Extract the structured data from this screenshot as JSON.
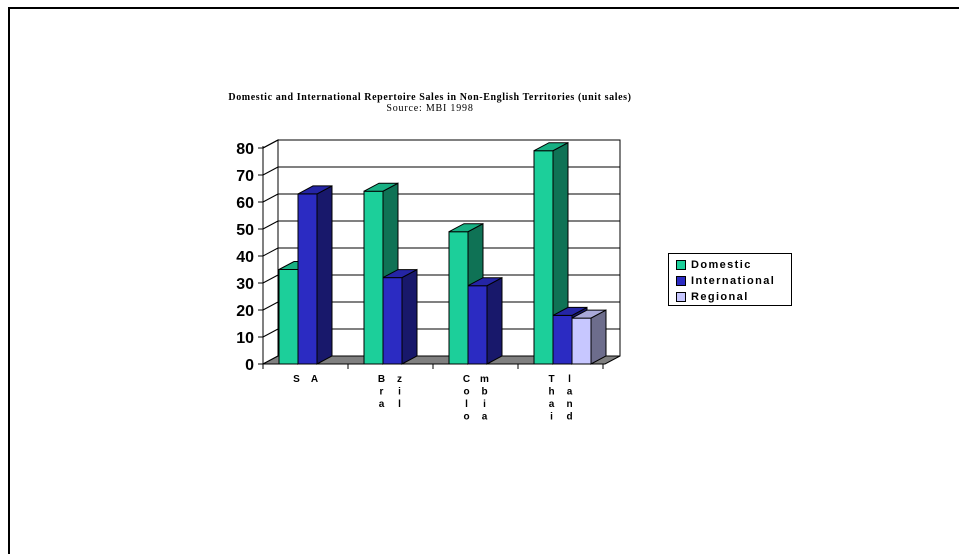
{
  "chart_data": {
    "type": "bar",
    "title": "Domestic and  International Repertoire Sales in Non-English Territories (unit sales)",
    "subtitle": "Source: MBI 1998",
    "categories": [
      "SA",
      "Brazil",
      "Colombia",
      "Thailand"
    ],
    "category_tick_text": [
      [
        "S",
        "A"
      ],
      [
        "B",
        "r",
        "a",
        "z",
        "i",
        "l"
      ],
      [
        "C",
        "o",
        "l",
        "o",
        "m",
        "b",
        "i",
        "a"
      ],
      [
        "T",
        "h",
        "a",
        "i",
        "l",
        "a",
        "n",
        "d"
      ]
    ],
    "series": [
      {
        "name": "Domestic",
        "values": [
          35,
          64,
          49,
          79
        ],
        "color": "#1ccf9a"
      },
      {
        "name": "International",
        "values": [
          63,
          32,
          29,
          18
        ],
        "color": "#2b2bc2"
      },
      {
        "name": "Regional",
        "values": [
          null,
          null,
          null,
          17
        ],
        "color": "#c7c7ff"
      }
    ],
    "ylim": [
      0,
      80
    ],
    "yticks": [
      "0",
      "10",
      "20",
      "30",
      "40",
      "50",
      "60",
      "70",
      "80"
    ],
    "grid": true,
    "legend": "right",
    "style": "3d-clustered-column"
  }
}
